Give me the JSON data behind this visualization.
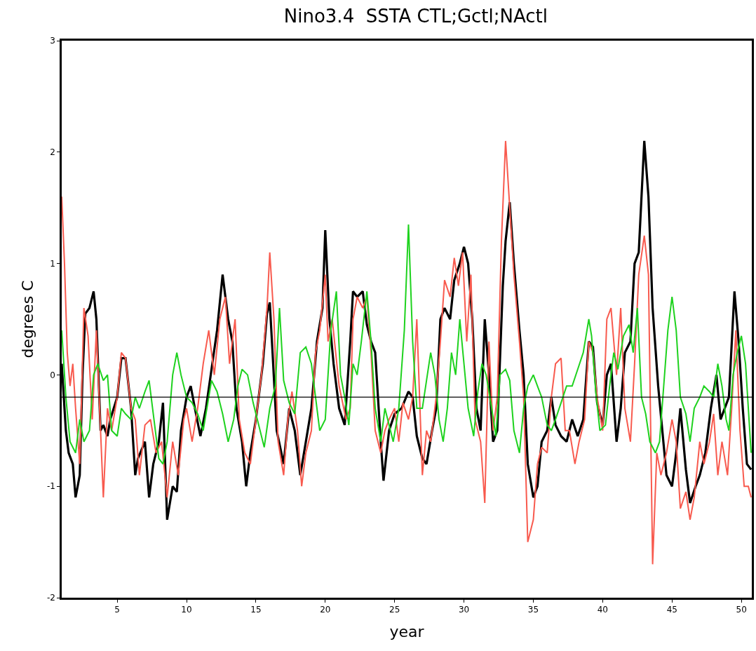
{
  "chart_data": {
    "type": "line",
    "title": "Nino3.4  SSTA CTL;Gctl;NActl",
    "xlabel": "year",
    "ylabel": "degrees C",
    "xlim": [
      1,
      50.75
    ],
    "xticks": [
      5,
      10,
      15,
      20,
      25,
      30,
      35,
      40,
      45,
      50
    ],
    "ylim": [
      -2,
      3
    ],
    "yticks": [
      -2,
      -1,
      0,
      1,
      2,
      3
    ],
    "marker": "none",
    "line_style": "solid",
    "ref_lines": [
      {
        "axis": "y",
        "value": -0.2,
        "color": "#000000"
      }
    ],
    "series": [
      {
        "color": "#000000",
        "x": [
          1.0,
          1.3,
          1.5,
          1.8,
          2.0,
          2.3,
          2.5,
          2.7,
          3.0,
          3.3,
          3.5,
          3.8,
          4.0,
          4.3,
          4.5,
          5.0,
          5.3,
          5.6,
          6.0,
          6.3,
          6.5,
          7.0,
          7.3,
          7.6,
          8.0,
          8.3,
          8.6,
          9.0,
          9.3,
          9.6,
          10.0,
          10.3,
          10.6,
          11.0,
          11.4,
          11.8,
          12.2,
          12.6,
          13.0,
          13.3,
          13.6,
          14.0,
          14.3,
          14.6,
          15.0,
          15.5,
          15.8,
          16.0,
          16.2,
          16.5,
          17.0,
          17.4,
          17.8,
          18.2,
          18.6,
          19.0,
          19.4,
          19.8,
          20.0,
          20.3,
          20.6,
          21.0,
          21.4,
          21.8,
          22.0,
          22.3,
          22.7,
          23.0,
          23.3,
          23.6,
          24.0,
          24.2,
          24.6,
          25.0,
          25.5,
          26.0,
          26.3,
          26.6,
          27.0,
          27.3,
          27.7,
          28.0,
          28.3,
          28.6,
          29.0,
          29.3,
          29.7,
          30.0,
          30.3,
          30.6,
          30.9,
          31.2,
          31.5,
          31.8,
          32.1,
          32.4,
          32.8,
          33.0,
          33.3,
          33.6,
          34.0,
          34.3,
          34.6,
          35.0,
          35.3,
          35.6,
          36.0,
          36.3,
          36.6,
          37.0,
          37.4,
          37.8,
          38.2,
          38.6,
          39.0,
          39.3,
          39.6,
          40.0,
          40.3,
          40.6,
          41.0,
          41.3,
          41.6,
          42.0,
          42.3,
          42.6,
          43.0,
          43.3,
          43.6,
          44.0,
          44.3,
          44.6,
          45.0,
          45.3,
          45.6,
          46.0,
          46.3,
          46.7,
          47.0,
          47.4,
          47.8,
          48.2,
          48.5,
          48.8,
          49.1,
          49.5,
          49.8,
          50.1,
          50.4,
          50.7
        ],
        "values": [
          0.1,
          -0.5,
          -0.7,
          -0.8,
          -1.1,
          -0.9,
          0.0,
          0.55,
          0.6,
          0.75,
          0.5,
          -0.5,
          -0.45,
          -0.55,
          -0.4,
          -0.2,
          0.15,
          0.15,
          -0.3,
          -0.9,
          -0.75,
          -0.6,
          -1.1,
          -0.8,
          -0.6,
          -0.25,
          -1.3,
          -1.0,
          -1.05,
          -0.5,
          -0.2,
          -0.1,
          -0.3,
          -0.55,
          -0.3,
          0.05,
          0.4,
          0.9,
          0.5,
          0.3,
          -0.3,
          -0.6,
          -1.0,
          -0.7,
          -0.4,
          0.1,
          0.55,
          0.65,
          0.2,
          -0.5,
          -0.8,
          -0.3,
          -0.5,
          -0.9,
          -0.6,
          -0.3,
          0.3,
          0.6,
          1.3,
          0.5,
          0.1,
          -0.3,
          -0.45,
          0.3,
          0.75,
          0.7,
          0.75,
          0.45,
          0.3,
          0.2,
          -0.6,
          -0.95,
          -0.5,
          -0.35,
          -0.3,
          -0.15,
          -0.2,
          -0.55,
          -0.75,
          -0.8,
          -0.5,
          -0.3,
          0.5,
          0.6,
          0.5,
          0.85,
          1.0,
          1.15,
          1.0,
          0.5,
          -0.3,
          -0.5,
          0.5,
          0.0,
          -0.6,
          -0.5,
          0.8,
          1.2,
          1.55,
          1.0,
          0.4,
          0.0,
          -0.8,
          -1.1,
          -1.0,
          -0.6,
          -0.5,
          -0.2,
          -0.45,
          -0.55,
          -0.6,
          -0.4,
          -0.55,
          -0.4,
          0.3,
          0.25,
          -0.25,
          -0.45,
          0.0,
          0.1,
          -0.6,
          -0.3,
          0.2,
          0.3,
          1.0,
          1.1,
          2.1,
          1.6,
          0.6,
          -0.1,
          -0.5,
          -0.9,
          -1.0,
          -0.7,
          -0.3,
          -0.85,
          -1.15,
          -1.0,
          -0.9,
          -0.7,
          -0.3,
          0.0,
          -0.4,
          -0.3,
          -0.2,
          0.75,
          0.3,
          -0.3,
          -0.8,
          -0.85
        ]
      },
      {
        "color": "#f85a4e",
        "x": [
          1.0,
          1.2,
          1.4,
          1.6,
          1.8,
          2.0,
          2.3,
          2.6,
          2.9,
          3.2,
          3.5,
          3.8,
          4.0,
          4.3,
          4.6,
          5.0,
          5.3,
          5.6,
          6.0,
          6.3,
          6.6,
          7.0,
          7.4,
          7.8,
          8.2,
          8.6,
          9.0,
          9.4,
          9.8,
          10.0,
          10.4,
          10.8,
          11.2,
          11.6,
          12.0,
          12.4,
          12.8,
          13.1,
          13.5,
          13.8,
          14.2,
          14.6,
          15.0,
          15.4,
          15.8,
          16.0,
          16.3,
          16.6,
          17.0,
          17.3,
          17.6,
          18.0,
          18.3,
          18.6,
          19.0,
          19.3,
          19.6,
          20.0,
          20.2,
          20.5,
          21.0,
          21.5,
          21.8,
          22.0,
          22.3,
          22.7,
          23.0,
          23.3,
          23.6,
          24.0,
          24.3,
          24.6,
          25.0,
          25.3,
          25.6,
          26.0,
          26.3,
          26.6,
          27.0,
          27.3,
          27.6,
          28.0,
          28.3,
          28.6,
          29.0,
          29.3,
          29.6,
          29.9,
          30.2,
          30.5,
          30.8,
          31.2,
          31.5,
          31.8,
          32.1,
          32.4,
          32.7,
          33.0,
          33.3,
          33.6,
          34.0,
          34.3,
          34.6,
          35.0,
          35.3,
          35.6,
          36.0,
          36.3,
          36.6,
          37.0,
          37.3,
          37.6,
          38.0,
          38.3,
          38.7,
          39.0,
          39.3,
          39.6,
          40.0,
          40.3,
          40.6,
          41.0,
          41.3,
          41.6,
          42.0,
          42.3,
          42.6,
          43.0,
          43.3,
          43.6,
          43.9,
          44.2,
          44.6,
          45.0,
          45.3,
          45.6,
          46.0,
          46.3,
          46.6,
          47.0,
          47.3,
          47.7,
          48.0,
          48.3,
          48.6,
          49.0,
          49.3,
          49.6,
          49.9,
          50.2,
          50.5,
          50.7
        ],
        "values": [
          1.6,
          1.0,
          0.2,
          -0.1,
          0.1,
          -0.3,
          -0.8,
          0.6,
          0.35,
          -0.4,
          0.4,
          -0.5,
          -1.1,
          -0.3,
          -0.5,
          -0.2,
          0.2,
          0.15,
          -0.3,
          -0.4,
          -0.9,
          -0.45,
          -0.4,
          -0.7,
          -0.6,
          -1.1,
          -0.6,
          -0.9,
          -0.4,
          -0.3,
          -0.6,
          -0.3,
          0.1,
          0.4,
          0.0,
          0.5,
          0.7,
          0.1,
          0.5,
          -0.4,
          -0.7,
          -0.8,
          -0.4,
          0.0,
          0.6,
          1.1,
          0.5,
          -0.6,
          -0.9,
          -0.4,
          -0.15,
          -0.5,
          -1.0,
          -0.7,
          -0.5,
          0.2,
          0.4,
          0.9,
          0.3,
          0.5,
          -0.1,
          -0.4,
          -0.3,
          0.5,
          0.7,
          0.6,
          0.7,
          0.2,
          -0.5,
          -0.7,
          -0.5,
          -0.4,
          -0.3,
          -0.6,
          -0.25,
          -0.4,
          -0.2,
          0.5,
          -0.9,
          -0.5,
          -0.6,
          -0.2,
          0.3,
          0.85,
          0.7,
          1.05,
          0.8,
          1.1,
          0.3,
          0.9,
          -0.4,
          -0.6,
          -1.15,
          0.3,
          -0.5,
          -0.2,
          1.2,
          2.1,
          1.5,
          0.9,
          0.3,
          -0.2,
          -1.5,
          -1.3,
          -0.8,
          -0.65,
          -0.7,
          -0.2,
          0.1,
          0.15,
          -0.5,
          -0.5,
          -0.8,
          -0.6,
          -0.4,
          0.3,
          0.2,
          -0.2,
          -0.5,
          0.5,
          0.6,
          0.0,
          0.6,
          -0.3,
          -0.6,
          0.1,
          0.9,
          1.25,
          0.9,
          -1.7,
          -0.7,
          -0.9,
          -0.7,
          -0.4,
          -0.6,
          -1.2,
          -1.05,
          -1.3,
          -1.1,
          -0.6,
          -0.8,
          -0.6,
          -0.35,
          -0.9,
          -0.6,
          -0.9,
          -0.3,
          0.4,
          -0.5,
          -1.0,
          -1.0,
          -1.1
        ]
      },
      {
        "color": "#1ed21e",
        "x": [
          1.0,
          1.3,
          1.6,
          2.0,
          2.3,
          2.6,
          3.0,
          3.3,
          3.6,
          4.0,
          4.3,
          4.6,
          5.0,
          5.3,
          5.6,
          6.0,
          6.3,
          6.6,
          7.0,
          7.3,
          7.6,
          8.0,
          8.3,
          8.6,
          9.0,
          9.3,
          9.6,
          10.0,
          10.4,
          10.8,
          11.2,
          11.6,
          11.8,
          12.2,
          12.6,
          13.0,
          13.4,
          13.7,
          14.0,
          14.4,
          14.8,
          15.2,
          15.6,
          16.0,
          16.4,
          16.7,
          17.0,
          17.4,
          17.8,
          18.2,
          18.6,
          19.0,
          19.3,
          19.6,
          20.0,
          20.4,
          20.8,
          21.1,
          21.4,
          21.7,
          22.0,
          22.3,
          22.6,
          23.0,
          23.3,
          23.6,
          24.0,
          24.3,
          24.6,
          24.9,
          25.3,
          25.7,
          26.0,
          26.3,
          26.6,
          27.0,
          27.3,
          27.6,
          27.9,
          28.2,
          28.5,
          28.8,
          29.1,
          29.4,
          29.7,
          30.0,
          30.3,
          30.7,
          31.0,
          31.3,
          31.6,
          32.0,
          32.3,
          32.6,
          33.0,
          33.3,
          33.6,
          34.0,
          34.3,
          34.6,
          35.0,
          35.3,
          35.6,
          36.0,
          36.3,
          36.6,
          37.0,
          37.4,
          37.8,
          38.2,
          38.6,
          39.0,
          39.2,
          39.5,
          39.8,
          40.2,
          40.5,
          40.8,
          41.1,
          41.5,
          41.9,
          42.2,
          42.5,
          42.8,
          43.1,
          43.4,
          43.8,
          44.1,
          44.4,
          44.7,
          45.0,
          45.3,
          45.6,
          46.0,
          46.3,
          46.6,
          47.0,
          47.3,
          47.7,
          48.0,
          48.3,
          48.6,
          48.9,
          49.1,
          49.4,
          49.7,
          50.0,
          50.3,
          50.7
        ],
        "values": [
          0.4,
          -0.2,
          -0.6,
          -0.7,
          -0.4,
          -0.6,
          -0.5,
          0.0,
          0.1,
          -0.05,
          0.0,
          -0.5,
          -0.55,
          -0.3,
          -0.35,
          -0.4,
          -0.2,
          -0.3,
          -0.15,
          -0.05,
          -0.35,
          -0.75,
          -0.8,
          -0.6,
          0.0,
          0.2,
          0.0,
          -0.2,
          -0.25,
          -0.35,
          -0.5,
          -0.2,
          -0.05,
          -0.15,
          -0.35,
          -0.6,
          -0.4,
          -0.1,
          0.05,
          0.0,
          -0.25,
          -0.45,
          -0.65,
          -0.3,
          -0.1,
          0.6,
          -0.05,
          -0.25,
          -0.35,
          0.2,
          0.25,
          0.1,
          -0.2,
          -0.5,
          -0.4,
          0.4,
          0.75,
          0.0,
          -0.2,
          -0.45,
          0.1,
          0.0,
          0.3,
          0.75,
          0.3,
          -0.3,
          -0.6,
          -0.3,
          -0.45,
          -0.6,
          -0.3,
          0.4,
          1.35,
          0.3,
          -0.3,
          -0.3,
          -0.05,
          0.2,
          0.0,
          -0.4,
          -0.6,
          -0.3,
          0.2,
          0.0,
          0.5,
          0.1,
          -0.3,
          -0.55,
          -0.15,
          0.1,
          0.0,
          -0.3,
          -0.55,
          0.0,
          0.05,
          -0.05,
          -0.5,
          -0.7,
          -0.3,
          -0.1,
          0.0,
          -0.1,
          -0.2,
          -0.45,
          -0.5,
          -0.4,
          -0.25,
          -0.1,
          -0.1,
          0.05,
          0.2,
          0.5,
          0.35,
          -0.15,
          -0.5,
          -0.45,
          -0.1,
          0.2,
          0.05,
          0.35,
          0.45,
          0.2,
          0.6,
          -0.2,
          -0.35,
          -0.6,
          -0.7,
          -0.6,
          -0.1,
          0.4,
          0.7,
          0.4,
          -0.2,
          -0.35,
          -0.6,
          -0.3,
          -0.2,
          -0.1,
          -0.15,
          -0.2,
          0.1,
          -0.1,
          -0.4,
          -0.5,
          0.0,
          0.2,
          0.35,
          0.1,
          -0.7
        ]
      }
    ]
  }
}
